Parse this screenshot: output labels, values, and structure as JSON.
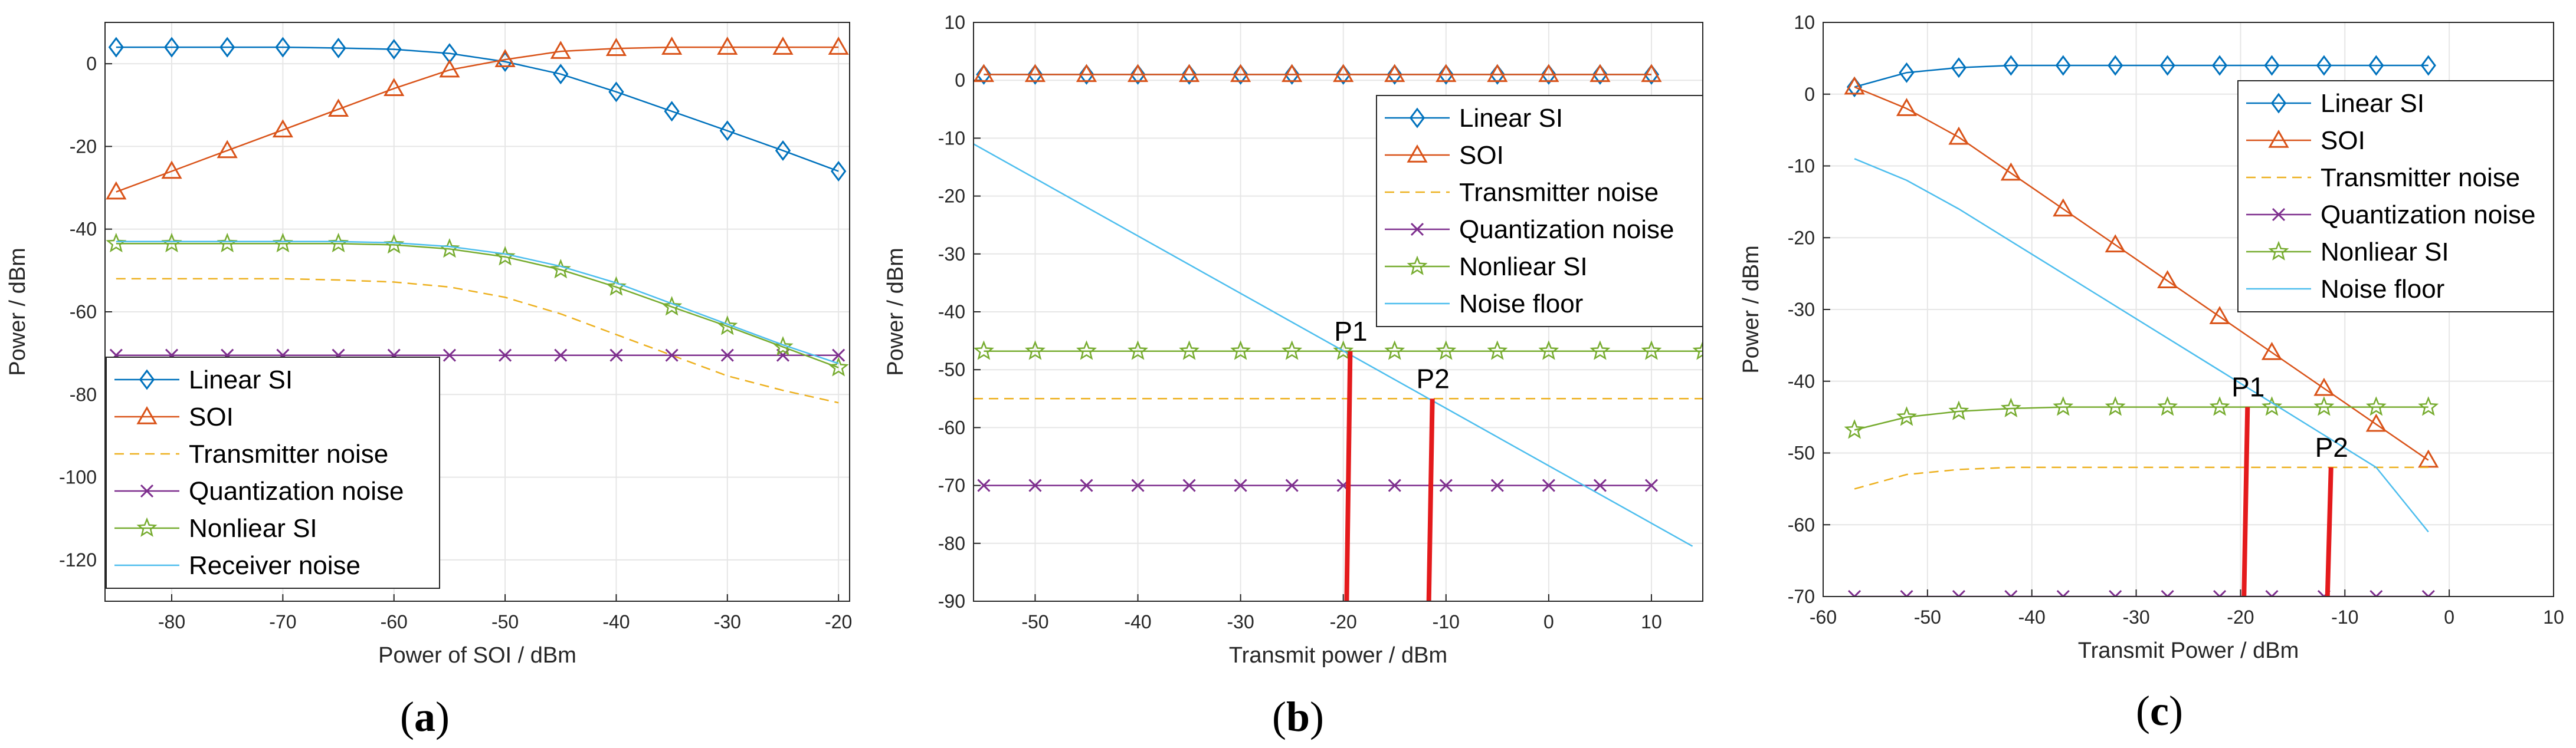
{
  "colors": {
    "linear_si": "#0072BD",
    "soi": "#D95319",
    "tx_noise": "#EDB120",
    "quant": "#7E2F8E",
    "nonlinear": "#77AC30",
    "noise": "#4DBEEE",
    "marker": "#E41A1C",
    "grid": "#E6E6E6",
    "axis": "#262626"
  },
  "chart_data": [
    {
      "id": "a",
      "type": "line",
      "caption_open": "(",
      "caption": "a",
      "caption_close": ")",
      "xlabel": "Power of SOI / dBm",
      "ylabel": "Power / dBm",
      "xlim": [
        -86,
        -19
      ],
      "ylim": [
        -130,
        10
      ],
      "xticks": [
        -80,
        -70,
        -60,
        -50,
        -40,
        -30,
        -20
      ],
      "yticks": [
        0,
        -20,
        -40,
        -60,
        -80,
        -100,
        -120
      ],
      "legend_position": "bottom-left",
      "series": [
        {
          "name": "Linear SI",
          "key": "linear_si",
          "marker": "diamond",
          "x": [
            -85,
            -80,
            -75,
            -70,
            -65,
            -60,
            -55,
            -50,
            -45,
            -40,
            -35,
            -30,
            -25,
            -20
          ],
          "y": [
            4,
            4,
            4,
            4,
            3.8,
            3.5,
            2.5,
            0.5,
            -2.5,
            -6.8,
            -11.5,
            -16.2,
            -21,
            -26
          ]
        },
        {
          "name": "SOI",
          "key": "soi",
          "marker": "triangle",
          "x": [
            -85,
            -80,
            -75,
            -70,
            -65,
            -60,
            -55,
            -50,
            -45,
            -40,
            -35,
            -30,
            -25,
            -20
          ],
          "y": [
            -31,
            -26,
            -21,
            -16,
            -11,
            -6,
            -1.5,
            1,
            3,
            3.7,
            4,
            4,
            4,
            4
          ]
        },
        {
          "name": "Transmitter noise",
          "key": "tx_noise",
          "marker": "none",
          "dash": true,
          "x": [
            -85,
            -80,
            -75,
            -70,
            -65,
            -60,
            -55,
            -50,
            -45,
            -40,
            -35,
            -30,
            -25,
            -20
          ],
          "y": [
            -52,
            -52,
            -52,
            -52,
            -52.3,
            -52.8,
            -54,
            -56.5,
            -60.5,
            -65.5,
            -70.5,
            -75.5,
            -79,
            -82
          ]
        },
        {
          "name": "Quantization noise",
          "key": "quant",
          "marker": "x",
          "x": [
            -85,
            -80,
            -75,
            -70,
            -65,
            -60,
            -55,
            -50,
            -45,
            -40,
            -35,
            -30,
            -25,
            -20
          ],
          "y": [
            -70.5,
            -70.5,
            -70.5,
            -70.5,
            -70.5,
            -70.5,
            -70.5,
            -70.5,
            -70.5,
            -70.5,
            -70.5,
            -70.5,
            -70.5,
            -70.5
          ]
        },
        {
          "name": "Nonliear SI",
          "key": "nonlinear",
          "marker": "star",
          "x": [
            -85,
            -80,
            -75,
            -70,
            -65,
            -60,
            -55,
            -50,
            -45,
            -40,
            -35,
            -30,
            -25,
            -20
          ],
          "y": [
            -43.5,
            -43.5,
            -43.5,
            -43.5,
            -43.5,
            -43.8,
            -44.8,
            -46.7,
            -49.8,
            -54,
            -58.8,
            -63.5,
            -68.5,
            -73.5
          ]
        },
        {
          "name": "Receiver noise",
          "key": "noise",
          "marker": "none",
          "x": [
            -85,
            -80,
            -75,
            -70,
            -65,
            -60,
            -55,
            -50,
            -45,
            -40,
            -35,
            -30,
            -25,
            -20
          ],
          "y": [
            -43,
            -43,
            -43,
            -43,
            -43,
            -43.3,
            -44.2,
            -46,
            -49,
            -53,
            -58,
            -63,
            -68,
            -72.5
          ]
        }
      ],
      "annotations": []
    },
    {
      "id": "b",
      "type": "line",
      "caption_open": "(",
      "caption": "b",
      "caption_close": ")",
      "xlabel": "Transmit power / dBm",
      "ylabel": "Power / dBm",
      "xlim": [
        -56,
        15
      ],
      "ylim": [
        -90,
        10
      ],
      "xticks": [
        -50,
        -40,
        -30,
        -20,
        -10,
        0,
        10
      ],
      "yticks": [
        10,
        0,
        -10,
        -20,
        -30,
        -40,
        -50,
        -60,
        -70,
        -80,
        -90
      ],
      "legend_position": "top-right",
      "series": [
        {
          "name": "Linear SI",
          "key": "linear_si",
          "marker": "diamond",
          "x": [
            -55,
            -50,
            -45,
            -40,
            -35,
            -30,
            -25,
            -20,
            -15,
            -10,
            -5,
            0,
            5,
            10
          ],
          "y": [
            1,
            1,
            1,
            1,
            1,
            1,
            1,
            1,
            1,
            1,
            1,
            1,
            1,
            1
          ]
        },
        {
          "name": "SOI",
          "key": "soi",
          "marker": "triangle",
          "x": [
            -55,
            -50,
            -45,
            -40,
            -35,
            -30,
            -25,
            -20,
            -15,
            -10,
            -5,
            0,
            5,
            10
          ],
          "y": [
            1,
            1,
            1,
            1,
            1,
            1,
            1,
            1,
            1,
            1,
            1,
            1,
            1,
            1
          ]
        },
        {
          "name": "Transmitter noise",
          "key": "tx_noise",
          "marker": "none",
          "dash": true,
          "x": [
            -56,
            15
          ],
          "y": [
            -55,
            -55
          ]
        },
        {
          "name": "Quantization noise",
          "key": "quant",
          "marker": "x",
          "x": [
            -55,
            -50,
            -45,
            -40,
            -35,
            -30,
            -25,
            -20,
            -15,
            -10,
            -5,
            0,
            5,
            10
          ],
          "y": [
            -70,
            -70,
            -70,
            -70,
            -70,
            -70,
            -70,
            -70,
            -70,
            -70,
            -70,
            -70,
            -70,
            -70
          ]
        },
        {
          "name": "Nonliear SI",
          "key": "nonlinear",
          "marker": "star",
          "x": [
            -55,
            -50,
            -45,
            -40,
            -35,
            -30,
            -25,
            -20,
            -15,
            -10,
            -5,
            0,
            5,
            10,
            15
          ],
          "y": [
            -46.8,
            -46.8,
            -46.8,
            -46.8,
            -46.8,
            -46.8,
            -46.8,
            -46.8,
            -46.8,
            -46.8,
            -46.8,
            -46.8,
            -46.8,
            -46.8,
            -46.8
          ]
        },
        {
          "name": "Noise floor",
          "key": "noise",
          "marker": "none",
          "x": [
            -56,
            14
          ],
          "y": [
            -11,
            -80.5
          ]
        }
      ],
      "annotations": [
        {
          "label": "P1",
          "x": -19.5,
          "y_top": -46.8
        },
        {
          "label": "P2",
          "x": -11.5,
          "y_top": -55
        }
      ]
    },
    {
      "id": "c",
      "type": "line",
      "caption_open": "(",
      "caption": "c",
      "caption_close": ")",
      "xlabel": "Transmit Power / dBm",
      "ylabel": "Power / dBm",
      "xlim": [
        -60,
        10
      ],
      "ylim": [
        -70,
        10
      ],
      "xticks": [
        -60,
        -50,
        -40,
        -30,
        -20,
        -10,
        0,
        10
      ],
      "yticks": [
        10,
        0,
        -10,
        -20,
        -30,
        -40,
        -50,
        -60,
        -70
      ],
      "legend_position": "top-right",
      "series": [
        {
          "name": "Linear SI",
          "key": "linear_si",
          "marker": "diamond",
          "x": [
            -57,
            -52,
            -47,
            -42,
            -37,
            -32,
            -27,
            -22,
            -17,
            -12,
            -7,
            -2
          ],
          "y": [
            1,
            3,
            3.7,
            4,
            4,
            4,
            4,
            4,
            4,
            4,
            4,
            4
          ]
        },
        {
          "name": "SOI",
          "key": "soi",
          "marker": "triangle",
          "x": [
            -57,
            -52,
            -47,
            -42,
            -37,
            -32,
            -27,
            -22,
            -17,
            -12,
            -7,
            -2
          ],
          "y": [
            1,
            -2,
            -6,
            -11,
            -16,
            -21,
            -26,
            -31,
            -36,
            -41,
            -46,
            -51
          ]
        },
        {
          "name": "Transmitter noise",
          "key": "tx_noise",
          "marker": "none",
          "dash": true,
          "x": [
            -57,
            -52,
            -47,
            -42,
            -37,
            -32,
            -27,
            -22,
            -17,
            -12,
            -7,
            -2
          ],
          "y": [
            -55,
            -53,
            -52.3,
            -52,
            -52,
            -52,
            -52,
            -52,
            -52,
            -52,
            -52,
            -52
          ]
        },
        {
          "name": "Quantization noise",
          "key": "quant",
          "marker": "x",
          "x": [
            -57,
            -52,
            -47,
            -42,
            -37,
            -32,
            -27,
            -22,
            -17,
            -12,
            -7,
            -2
          ],
          "y": [
            -70,
            -70,
            -70,
            -70,
            -70,
            -70,
            -70,
            -70,
            -70,
            -70,
            -70,
            -70
          ]
        },
        {
          "name": "Nonliear SI",
          "key": "nonlinear",
          "marker": "star",
          "x": [
            -57,
            -52,
            -47,
            -42,
            -37,
            -32,
            -27,
            -22,
            -17,
            -12,
            -7,
            -2
          ],
          "y": [
            -46.8,
            -45,
            -44.2,
            -43.8,
            -43.6,
            -43.6,
            -43.6,
            -43.6,
            -43.6,
            -43.6,
            -43.6,
            -43.6
          ]
        },
        {
          "name": "Noise floor",
          "key": "noise",
          "marker": "none",
          "x": [
            -57,
            -52,
            -47,
            -42,
            -37,
            -32,
            -27,
            -22,
            -17,
            -12,
            -7,
            -2
          ],
          "y": [
            -9,
            -12,
            -16,
            -20.5,
            -25,
            -29.5,
            -34,
            -38.5,
            -43,
            -47.5,
            -52,
            -61
          ]
        }
      ],
      "annotations": [
        {
          "label": "P1",
          "x": -19.5,
          "y_top": -43.6
        },
        {
          "label": "P2",
          "x": -11.5,
          "y_top": -52
        }
      ]
    }
  ]
}
